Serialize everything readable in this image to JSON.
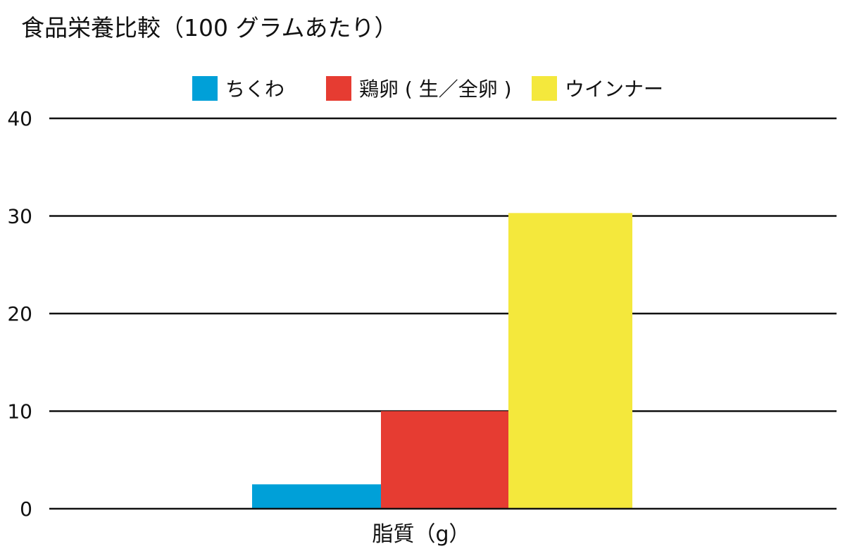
{
  "chart_data": {
    "type": "bar",
    "title": "食品栄養比較（100 グラムあたり）",
    "categories": [
      "脂質（g）"
    ],
    "series": [
      {
        "name": "ちくわ",
        "values": [
          2.5
        ],
        "color": "#00a0d8"
      },
      {
        "name": "鶏卵 ( 生／全卵 )",
        "values": [
          10
        ],
        "color": "#e63c32"
      },
      {
        "name": "ウインナー",
        "values": [
          30.3
        ],
        "color": "#f4e83c"
      }
    ],
    "ylim": [
      0,
      40
    ],
    "yticks": [
      "0",
      "10",
      "20",
      "30",
      "40"
    ],
    "xlabel": "",
    "ylabel": "",
    "grid": true,
    "legend_position": "top"
  }
}
